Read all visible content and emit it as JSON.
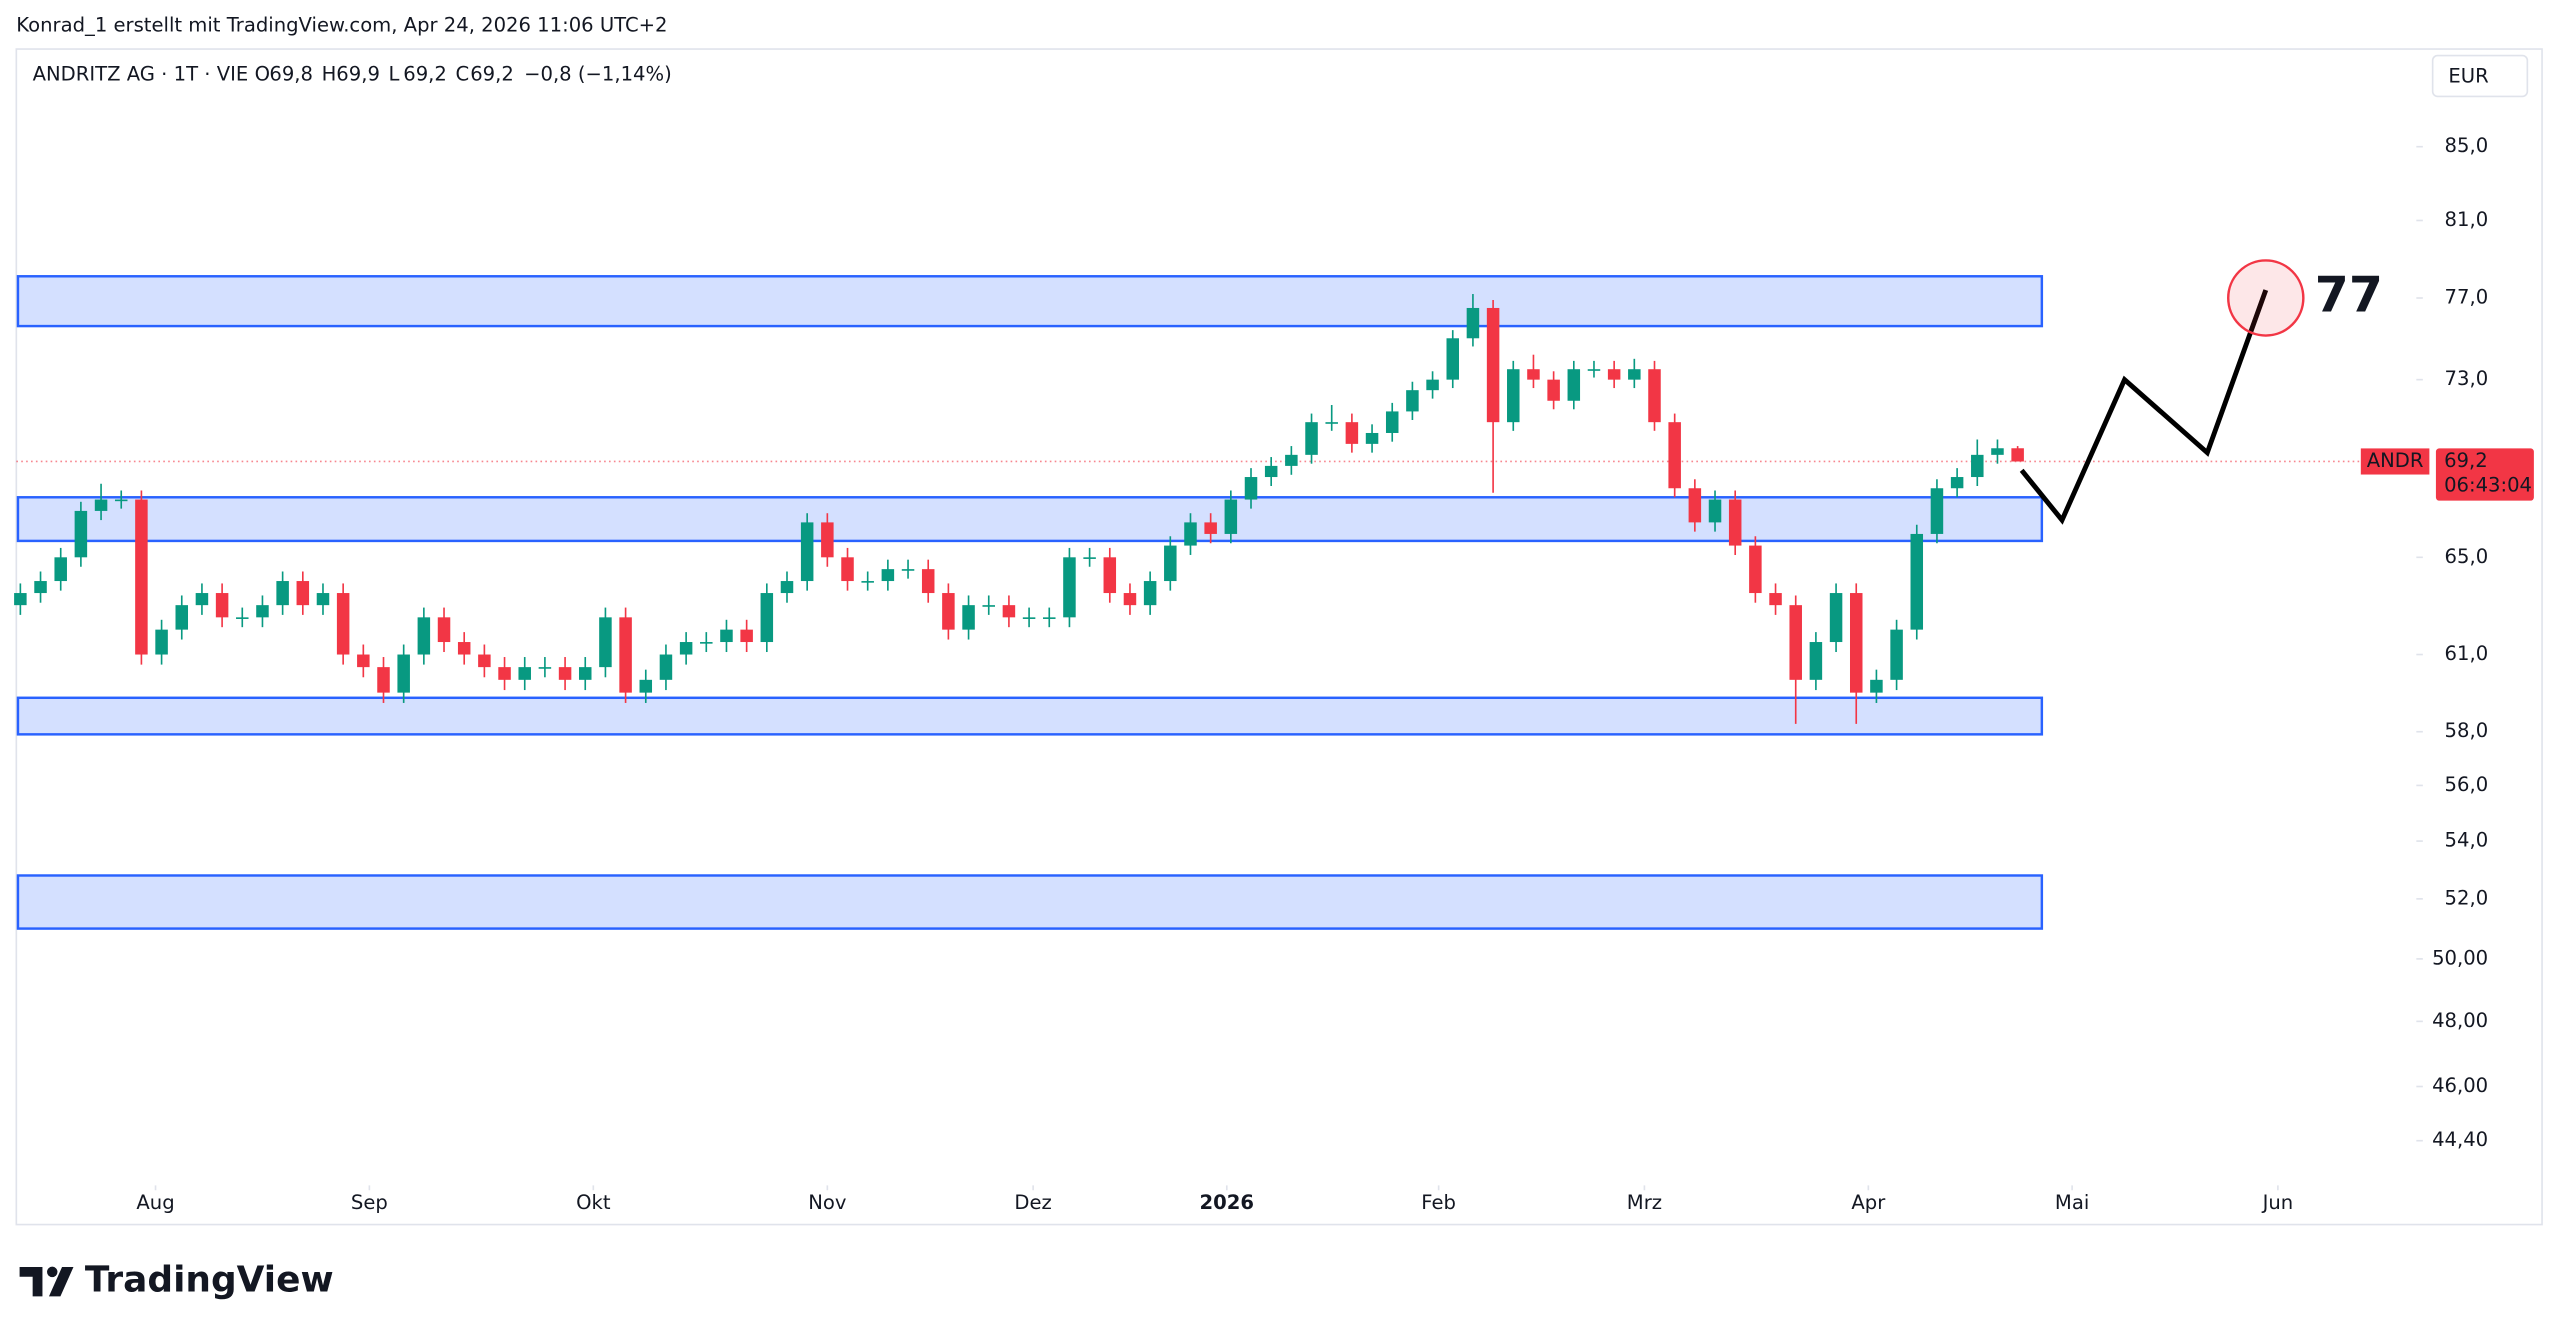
{
  "header": {
    "attribution": "Konrad_1 erstellt mit TradingView.com, Apr 24, 2026 11:06 UTC+2",
    "logo": "TradingView"
  },
  "chart_data": {
    "type": "candlestick",
    "symbol": "ANDRITZ AG · 1T · VIE",
    "ohlc_legend": [
      {
        "label": "O",
        "value": "69,8"
      },
      {
        "label": "H",
        "value": "69,9"
      },
      {
        "label": "L",
        "value": "69,2"
      },
      {
        "label": "C",
        "value": "69,2"
      }
    ],
    "change": "−0,8 (−1,14%)",
    "currency": "EUR",
    "up_color": "#089981",
    "down_color": "#f23645",
    "open": [
      63,
      63.5,
      64,
      65,
      67,
      67.5,
      67.5,
      61,
      62,
      63,
      63.5,
      62.5,
      62.5,
      63,
      64,
      63,
      63.5,
      61,
      60.5,
      59.5,
      61,
      62.5,
      61.5,
      61,
      60.5,
      60,
      60.5,
      60.5,
      60,
      60.5,
      62.5,
      59.5,
      60,
      61,
      61.5,
      61.5,
      62,
      61.5,
      63.5,
      64,
      66.5,
      65,
      64,
      64,
      64.5,
      64.5,
      63.5,
      62,
      63,
      63,
      62.5,
      62.5,
      62.5,
      65,
      65,
      63.5,
      63,
      64,
      65.5,
      66.5,
      66,
      67.5,
      68.5,
      69,
      69.5,
      71,
      71,
      70,
      70.5,
      71.5,
      72.5,
      73,
      75,
      76.5,
      71,
      73.5,
      73,
      72,
      73.5,
      73.5,
      73,
      73.5,
      71,
      68,
      66.5,
      67.5,
      65.5,
      63.5,
      63,
      60,
      61.5,
      63.5,
      59.5,
      60,
      62,
      66,
      68,
      68.5,
      69.5,
      69.8
    ],
    "high": [
      63.9,
      64.4,
      65.4,
      67.4,
      68.2,
      67.9,
      67.9,
      62.4,
      63.4,
      63.9,
      63.9,
      62.9,
      63.4,
      64.4,
      64.4,
      63.9,
      63.9,
      61.4,
      60.9,
      61.4,
      62.9,
      62.9,
      61.9,
      61.4,
      60.9,
      60.9,
      60.9,
      60.9,
      60.9,
      62.9,
      62.9,
      60.4,
      61.4,
      61.9,
      61.9,
      62.4,
      62.4,
      63.9,
      64.4,
      66.9,
      66.9,
      65.4,
      64.4,
      64.9,
      64.9,
      64.9,
      63.9,
      63.4,
      63.4,
      63.4,
      62.9,
      62.9,
      65.4,
      65.4,
      65.4,
      63.9,
      64.4,
      65.9,
      66.9,
      66.9,
      67.9,
      68.9,
      69.4,
      69.9,
      71.4,
      71.8,
      71.4,
      70.9,
      71.9,
      72.9,
      73.4,
      75.4,
      77.2,
      76.9,
      73.9,
      74.2,
      73.4,
      73.9,
      73.9,
      73.9,
      74,
      73.9,
      71.4,
      68.4,
      67.9,
      67.9,
      65.9,
      63.9,
      63.4,
      61.9,
      63.9,
      63.9,
      60.4,
      62.4,
      66.4,
      68.4,
      68.9,
      70.2,
      70.2,
      69.9
    ],
    "low": [
      62.6,
      63.1,
      63.6,
      64.6,
      66.6,
      67.1,
      60.6,
      60.6,
      61.6,
      62.6,
      62.1,
      62.1,
      62.1,
      62.6,
      62.6,
      62.6,
      60.6,
      60.1,
      59.1,
      59.1,
      60.6,
      61.1,
      60.6,
      60.1,
      59.6,
      59.6,
      60.1,
      59.6,
      59.6,
      60.1,
      59.1,
      59.1,
      59.6,
      60.6,
      61.1,
      61.1,
      61.1,
      61.1,
      63.1,
      63.6,
      64.6,
      63.6,
      63.6,
      63.6,
      64.1,
      63.1,
      61.6,
      61.6,
      62.6,
      62.1,
      62.1,
      62.1,
      62.1,
      64.6,
      63.1,
      62.6,
      62.6,
      63.6,
      65.1,
      65.6,
      65.6,
      67.1,
      68.1,
      68.6,
      69.1,
      70.6,
      69.6,
      69.6,
      70.1,
      71.1,
      72.1,
      72.6,
      74.6,
      67.8,
      70.6,
      72.6,
      71.6,
      71.6,
      73.1,
      72.6,
      72.6,
      70.6,
      67.6,
      66.1,
      66.1,
      65.1,
      63.1,
      62.6,
      58.3,
      59.6,
      61.1,
      58.3,
      59.1,
      59.6,
      61.6,
      65.6,
      67.6,
      68.1,
      69.1,
      69.2
    ],
    "close": [
      63.5,
      64,
      65,
      67,
      67.5,
      67.5,
      61,
      62,
      63,
      63.5,
      62.5,
      62.5,
      63,
      64,
      63,
      63.5,
      61,
      60.5,
      59.5,
      61,
      62.5,
      61.5,
      61,
      60.5,
      60,
      60.5,
      60.5,
      60,
      60.5,
      62.5,
      59.5,
      60,
      61,
      61.5,
      61.5,
      62,
      61.5,
      63.5,
      64,
      66.5,
      65,
      64,
      64,
      64.5,
      64.5,
      63.5,
      62,
      63,
      63,
      62.5,
      62.5,
      62.5,
      65,
      65,
      63.5,
      63,
      64,
      65.5,
      66.5,
      66,
      67.5,
      68.5,
      69,
      69.5,
      71,
      71,
      70,
      70.5,
      71.5,
      72.5,
      73,
      75,
      76.5,
      71,
      73.5,
      73,
      72,
      73.5,
      73.5,
      73,
      73.5,
      71,
      68,
      66.5,
      67.5,
      65.5,
      63.5,
      63,
      60,
      61.5,
      63.5,
      59.5,
      60,
      62,
      66,
      68,
      68.5,
      69.5,
      69.8,
      69.2
    ],
    "xlim": [
      -0.2,
      118.6
    ],
    "xticks": [
      {
        "value": 6.7,
        "label": "Aug"
      },
      {
        "value": 17.3,
        "label": "Sep"
      },
      {
        "value": 28.4,
        "label": "Okt"
      },
      {
        "value": 40,
        "label": "Nov"
      },
      {
        "value": 50.2,
        "label": "Dez"
      },
      {
        "value": 59.8,
        "label": "2026"
      },
      {
        "value": 70.3,
        "label": "Feb"
      },
      {
        "value": 80.5,
        "label": "Mrz"
      },
      {
        "value": 91.6,
        "label": "Apr"
      },
      {
        "value": 101.7,
        "label": "Mai"
      },
      {
        "value": 111.9,
        "label": "Jun"
      }
    ],
    "log_scale": true,
    "ylim": [
      43.4,
      90.6
    ],
    "yticks": [
      {
        "value": 85,
        "label": "85,0"
      },
      {
        "value": 81,
        "label": "81,0"
      },
      {
        "value": 77,
        "label": "77,0"
      },
      {
        "value": 73,
        "label": "73,0"
      },
      {
        "value": 65,
        "label": "65,0"
      },
      {
        "value": 61,
        "label": "61,0"
      },
      {
        "value": 58,
        "label": "58,0"
      },
      {
        "value": 56,
        "label": "56,0"
      },
      {
        "value": 54,
        "label": "54,0"
      },
      {
        "value": 52,
        "label": "52,0"
      },
      {
        "value": 50,
        "label": "50,00"
      },
      {
        "value": 48,
        "label": "48,00"
      },
      {
        "value": 46,
        "label": "46,00"
      },
      {
        "value": 44.4,
        "label": "44,40"
      }
    ],
    "last_price": {
      "symbol": "ANDR",
      "value": 69.2,
      "label": "69,2",
      "countdown": "06:43:04"
    },
    "zones": [
      {
        "low": 75.6,
        "high": 78.1
      },
      {
        "low": 65.7,
        "high": 67.6
      },
      {
        "low": 57.9,
        "high": 59.3
      },
      {
        "low": 51.0,
        "high": 52.8
      }
    ],
    "zone_color": "#2962ff",
    "projection": {
      "x": [
        99.2,
        101.2,
        104.3,
        108.4,
        111.3
      ],
      "y": [
        68.8,
        66.6,
        73.0,
        69.6,
        77.4
      ],
      "target": 77
    }
  }
}
